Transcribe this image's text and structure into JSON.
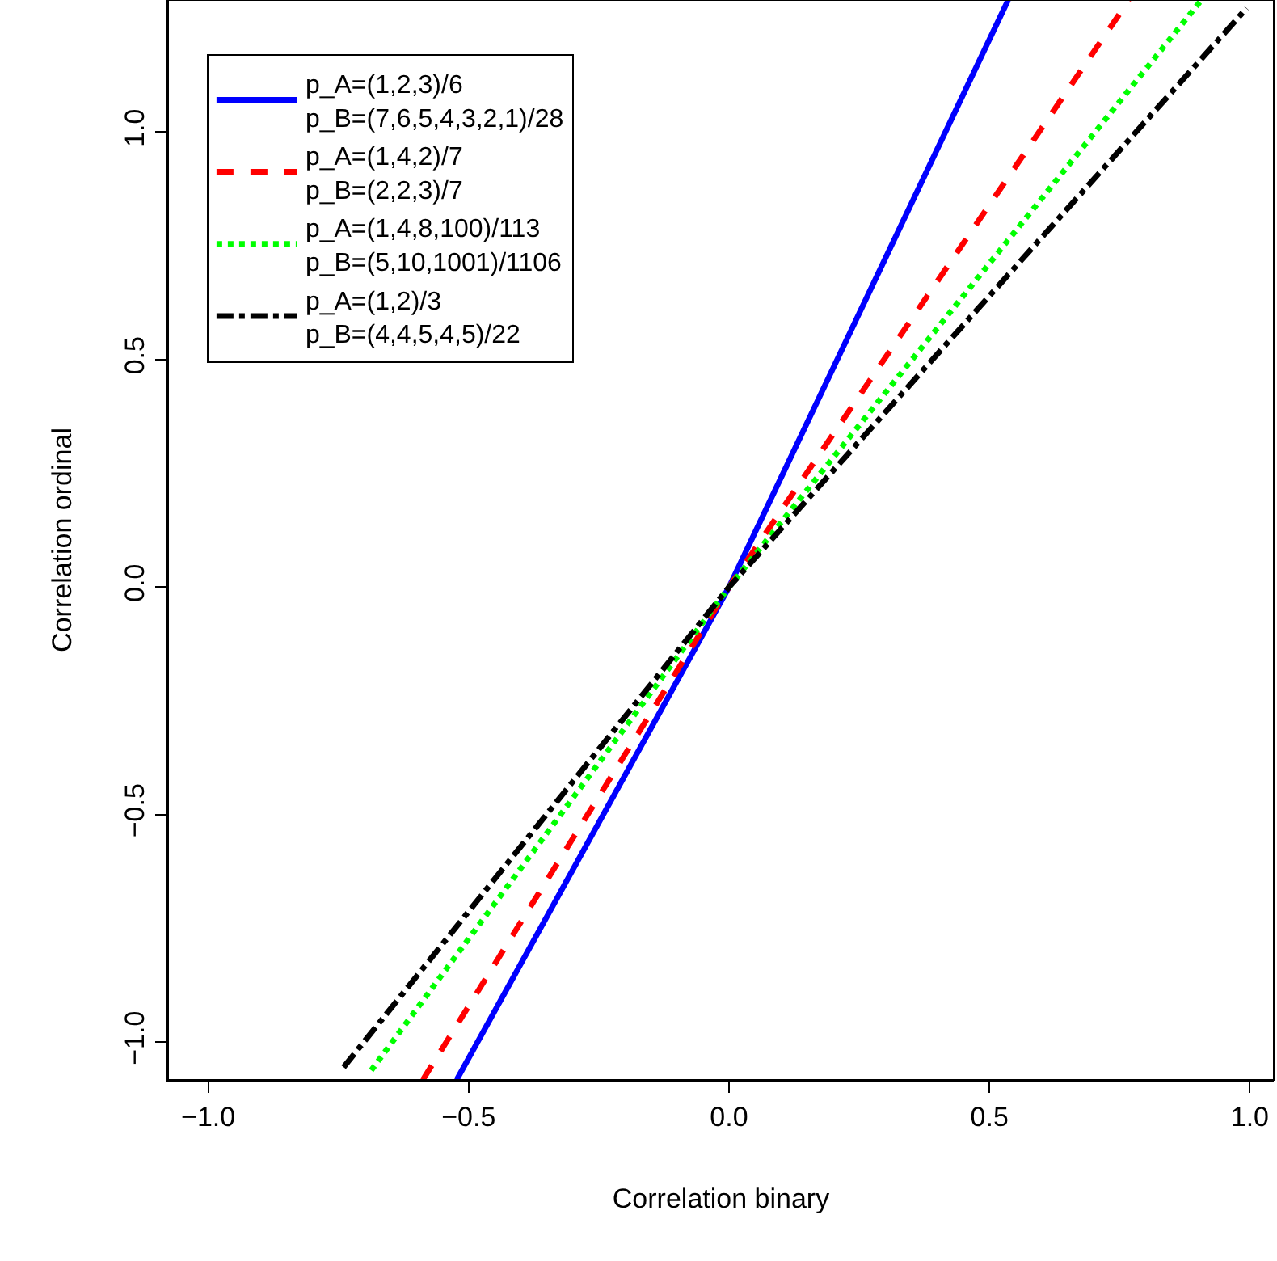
{
  "chart_data": {
    "type": "line",
    "xlabel": "Correlation binary",
    "ylabel": "Correlation ordinal",
    "xlim": [
      -1.077,
      1.046
    ],
    "ylim": [
      -1.083,
      1.29
    ],
    "xticks": [
      {
        "value": -1,
        "label": "−1.0"
      },
      {
        "value": -0.5,
        "label": "−0.5"
      },
      {
        "value": 0,
        "label": "0.0"
      },
      {
        "value": 0.5,
        "label": "0.5"
      },
      {
        "value": 1,
        "label": "1.0"
      }
    ],
    "yticks": [
      {
        "value": -1,
        "label": "−1.0"
      },
      {
        "value": -0.5,
        "label": "−0.5"
      },
      {
        "value": 0,
        "label": "0.0"
      },
      {
        "value": 0.5,
        "label": "0.5"
      },
      {
        "value": 1,
        "label": "1.0"
      }
    ],
    "grid": false,
    "legend": "top left",
    "marker": "none",
    "series": [
      {
        "name": "p_A=(1,2,3)/6\np_B=(7,6,5,4,3,2,1)/28",
        "color": "#0000ff",
        "line_style": "solid",
        "x": [
          -0.523,
          0,
          0.536
        ],
        "values": [
          -1.083,
          0,
          1.29
        ]
      },
      {
        "name": "p_A=(1,4,2)/7\np_B=(2,2,3)/7",
        "color": "#ff0000",
        "line_style": "dashed",
        "x": [
          -0.588,
          0,
          0.768
        ],
        "values": [
          -1.083,
          0,
          1.29
        ]
      },
      {
        "name": "p_A=(1,4,8,100)/113\np_B=(5,10,1001)/1106",
        "color": "#00ff00",
        "line_style": "dotted",
        "x": [
          -0.687,
          0,
          0.907
        ],
        "values": [
          -1.062,
          0,
          1.29
        ]
      },
      {
        "name": "p_A=(1,2)/3\np_B=(4,4,5,4,5)/22",
        "color": "#000000",
        "line_style": "dashdot",
        "x": [
          -0.74,
          0,
          0.994
        ],
        "values": [
          -1.055,
          0,
          1.272
        ]
      }
    ]
  }
}
